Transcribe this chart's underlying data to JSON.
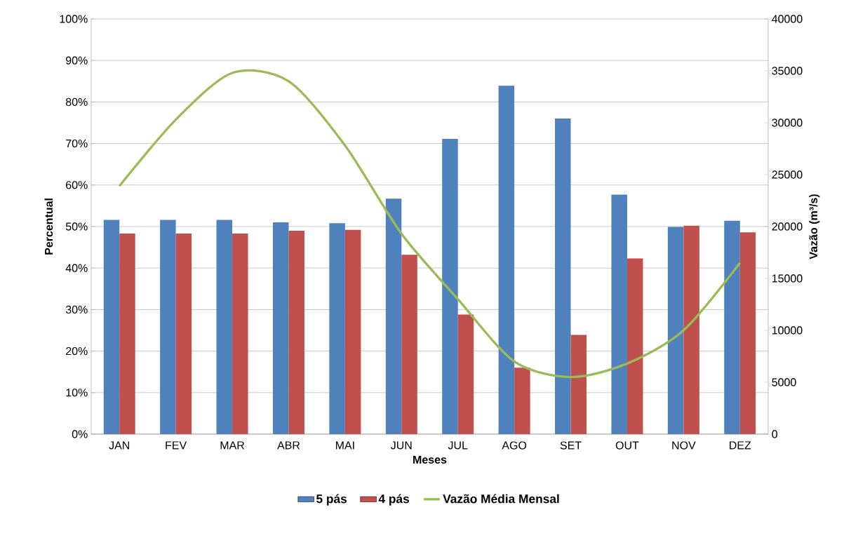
{
  "chart_data": {
    "type": "bar",
    "categories": [
      "JAN",
      "FEV",
      "MAR",
      "ABR",
      "MAI",
      "JUN",
      "JUL",
      "AGO",
      "SET",
      "OUT",
      "NOV",
      "DEZ"
    ],
    "series": [
      {
        "name": "5 pás",
        "color": "#4f81bd",
        "values": [
          51.6,
          51.6,
          51.6,
          51.0,
          50.8,
          56.7,
          71.1,
          83.9,
          76.0,
          57.7,
          49.9,
          51.4
        ]
      },
      {
        "name": "4 pás",
        "color": "#c0504d",
        "values": [
          48.3,
          48.3,
          48.3,
          49.0,
          49.2,
          43.2,
          28.8,
          16.0,
          23.9,
          42.3,
          50.2,
          48.6
        ]
      },
      {
        "name": "Vazão Média Mensal",
        "type": "line",
        "axis": "y2",
        "color": "#9bbb59",
        "values": [
          23900,
          30300,
          34800,
          34000,
          27800,
          19300,
          13000,
          7000,
          5500,
          6800,
          10000,
          16500
        ]
      }
    ],
    "xlabel": "Meses",
    "ylabel": "Percentual",
    "y2label": "Vazão (m³/s)",
    "ylim": [
      0,
      100
    ],
    "yticks": [
      {
        "value": 0,
        "label": "0%"
      },
      {
        "value": 10,
        "label": "10%"
      },
      {
        "value": 20,
        "label": "20%"
      },
      {
        "value": 30,
        "label": "30%"
      },
      {
        "value": 40,
        "label": "40%"
      },
      {
        "value": 50,
        "label": "50%"
      },
      {
        "value": 60,
        "label": "60%"
      },
      {
        "value": 70,
        "label": "70%"
      },
      {
        "value": 80,
        "label": "80%"
      },
      {
        "value": 90,
        "label": "90%"
      },
      {
        "value": 100,
        "label": "100%"
      }
    ],
    "y2lim": [
      0,
      40000
    ],
    "y2ticks": [
      0,
      5000,
      10000,
      15000,
      20000,
      25000,
      30000,
      35000,
      40000
    ],
    "grid": "y",
    "legend": "bottom",
    "marker": "none",
    "line_style": "solid"
  }
}
